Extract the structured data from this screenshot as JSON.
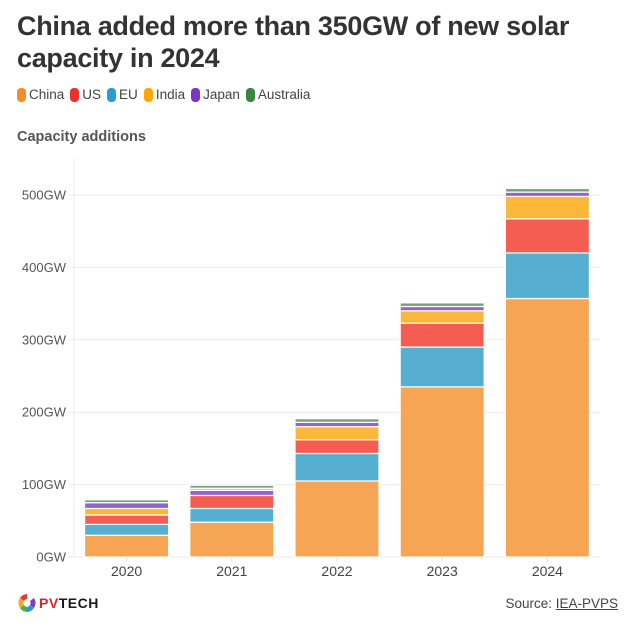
{
  "header": {
    "title": "China added more than 350GW of new solar capacity in 2024",
    "subtitle": "Capacity additions"
  },
  "legend": [
    {
      "label": "China",
      "color": "#f28e2b"
    },
    {
      "label": "US",
      "color": "#e8312b"
    },
    {
      "label": "EU",
      "color": "#2b9bd1"
    },
    {
      "label": "India",
      "color": "#ffa600"
    },
    {
      "label": "Japan",
      "color": "#7d35c7"
    },
    {
      "label": "Australia",
      "color": "#3a8544"
    }
  ],
  "footer": {
    "logo_pv": "PV",
    "logo_tech": "TECH",
    "source_prefix": "Source: ",
    "source_link": "IEA-PVPS"
  },
  "chart_data": {
    "type": "bar",
    "stacked": true,
    "title": "China added more than 350GW of new solar capacity in 2024",
    "subtitle": "Capacity additions",
    "xlabel": "",
    "ylabel": "",
    "categories": [
      "2020",
      "2021",
      "2022",
      "2023",
      "2024"
    ],
    "series": [
      {
        "name": "China",
        "color": "#f5a14b",
        "values": [
          30,
          48,
          105,
          235,
          357
        ]
      },
      {
        "name": "EU",
        "color": "#4eabcf",
        "values": [
          15,
          19,
          38,
          55,
          63
        ]
      },
      {
        "name": "US",
        "color": "#f5554a",
        "values": [
          13,
          18,
          19,
          33,
          47
        ]
      },
      {
        "name": "India",
        "color": "#fbb430",
        "values": [
          9,
          3,
          18,
          17,
          31
        ]
      },
      {
        "name": "Japan",
        "color": "#9459c9",
        "values": [
          8,
          7,
          6,
          6,
          6
        ]
      },
      {
        "name": "Australia",
        "color": "#6e9d72",
        "values": [
          4,
          4,
          5,
          5,
          5
        ]
      }
    ],
    "stack_order": [
      [
        "China",
        "EU",
        "US",
        "India",
        "Japan",
        "Australia"
      ],
      [
        "China",
        "EU",
        "US",
        "Japan",
        "India",
        "Australia"
      ],
      [
        "China",
        "EU",
        "US",
        "India",
        "Japan",
        "Australia"
      ],
      [
        "China",
        "EU",
        "US",
        "India",
        "Japan",
        "Australia"
      ],
      [
        "China",
        "EU",
        "US",
        "India",
        "Japan",
        "Australia"
      ]
    ],
    "yticks": [
      0,
      100,
      200,
      300,
      400,
      500
    ],
    "ytick_labels": [
      "0GW",
      "100GW",
      "200GW",
      "300GW",
      "400GW",
      "500GW"
    ],
    "ylim": [
      0,
      550
    ],
    "grid": true,
    "legend_position": "top-left"
  }
}
